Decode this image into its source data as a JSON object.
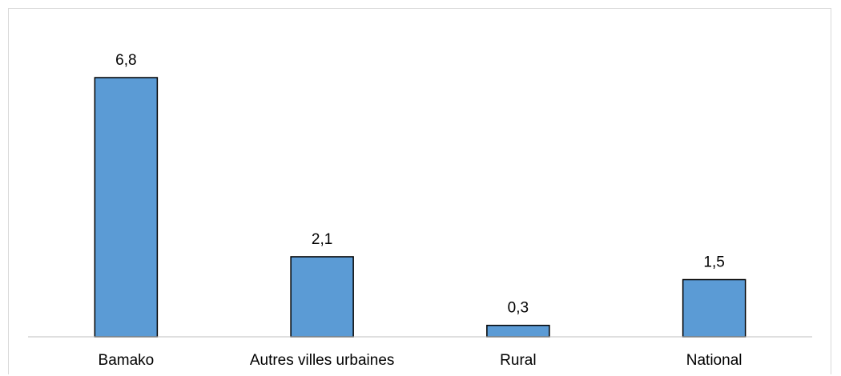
{
  "chart_data": {
    "type": "bar",
    "categories": [
      "Bamako",
      "Autres villes urbaines",
      "Rural",
      "National"
    ],
    "values": [
      6.8,
      2.1,
      0.3,
      1.5
    ],
    "value_labels": [
      "6,8",
      "2,1",
      "0,3",
      "1,5"
    ],
    "title": "",
    "xlabel": "",
    "ylabel": "",
    "ylim": [
      0,
      6.8
    ],
    "grid": false,
    "legend": "none",
    "colors": {
      "bar_fill": "#5b9bd5",
      "bar_stroke": "#000000",
      "axis": "#bfbfbf"
    }
  }
}
